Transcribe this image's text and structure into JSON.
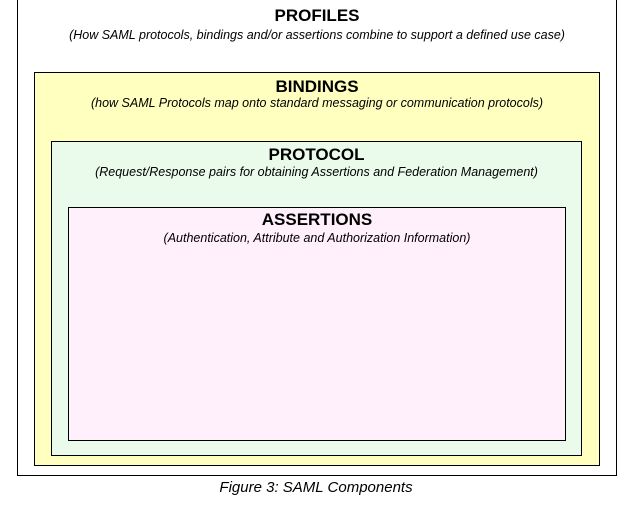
{
  "profiles": {
    "title": "PROFILES",
    "subtitle": "(How SAML protocols, bindings and/or assertions combine to support a defined use case)"
  },
  "bindings": {
    "title": "BINDINGS",
    "subtitle": "(how SAML Protocols map onto standard messaging or communication protocols)"
  },
  "protocol": {
    "title": "PROTOCOL",
    "subtitle": "(Request/Response pairs for obtaining Assertions and Federation Management)"
  },
  "assertions": {
    "title": "ASSERTIONS",
    "subtitle": "(Authentication, Attribute and Authorization Information)"
  },
  "caption": "Figure 3: SAML Components",
  "colors": {
    "profiles_fill": "#ffffff",
    "bindings_fill": "#ffffc0",
    "protocol_fill": "#ebfbeb",
    "assertions_fill": "#fff0fb"
  }
}
